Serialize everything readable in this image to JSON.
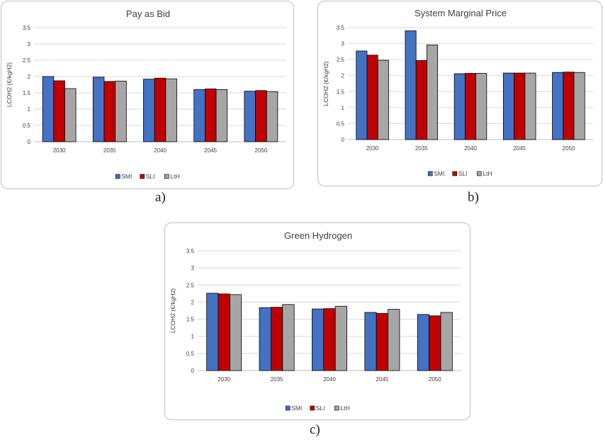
{
  "chart_data": [
    {
      "type": "bar",
      "id": "a",
      "title": "Pay as Bid",
      "caption": "a)",
      "ylabel": "LCOH2 (€/kgH2)",
      "xlabel": "",
      "ylim": [
        0,
        3.5
      ],
      "yticks": [
        "0",
        "0.5",
        "1",
        "1.5",
        "2",
        "2.5",
        "3",
        "3.5"
      ],
      "categories": [
        "2030",
        "2035",
        "2040",
        "2045",
        "2050"
      ],
      "grid": true,
      "legend_position": "bottom",
      "series": [
        {
          "name": "SMI",
          "color": "#4472c4",
          "values": [
            2.0,
            1.98,
            1.92,
            1.6,
            1.55
          ]
        },
        {
          "name": "SLI",
          "color": "#c00000",
          "values": [
            1.87,
            1.85,
            1.95,
            1.62,
            1.57
          ]
        },
        {
          "name": "LtH",
          "color": "#a6a6a6",
          "values": [
            1.63,
            1.86,
            1.93,
            1.6,
            1.54
          ]
        }
      ]
    },
    {
      "type": "bar",
      "id": "b",
      "title": "System Marginal Price",
      "caption": "b)",
      "ylabel": "LCOH2 (€/kgH2)",
      "xlabel": "",
      "ylim": [
        0,
        3.5
      ],
      "yticks": [
        "0",
        "0.5",
        "1",
        "1.5",
        "2",
        "2.5",
        "3",
        "3.5"
      ],
      "categories": [
        "2030",
        "2035",
        "2040",
        "2045",
        "2050"
      ],
      "grid": true,
      "legend_position": "bottom",
      "series": [
        {
          "name": "SMI",
          "color": "#4472c4",
          "values": [
            2.77,
            3.4,
            2.06,
            2.08,
            2.1
          ]
        },
        {
          "name": "SLI",
          "color": "#c00000",
          "values": [
            2.64,
            2.47,
            2.07,
            2.08,
            2.11
          ]
        },
        {
          "name": "LtH",
          "color": "#a6a6a6",
          "values": [
            2.48,
            2.96,
            2.07,
            2.08,
            2.1
          ]
        }
      ]
    },
    {
      "type": "bar",
      "id": "c",
      "title": "Green Hydrogen",
      "caption": "c)",
      "ylabel": "LCOH2 (€/kgH2)",
      "xlabel": "",
      "ylim": [
        0,
        3.5
      ],
      "yticks": [
        "0",
        "0.5",
        "1",
        "1.5",
        "2",
        "2.5",
        "3",
        "3.5"
      ],
      "categories": [
        "2030",
        "2035",
        "2040",
        "2045",
        "2050"
      ],
      "grid": true,
      "legend_position": "bottom",
      "series": [
        {
          "name": "SMI",
          "color": "#4472c4",
          "values": [
            2.26,
            1.84,
            1.8,
            1.7,
            1.64
          ]
        },
        {
          "name": "SLI",
          "color": "#c00000",
          "values": [
            2.24,
            1.85,
            1.81,
            1.67,
            1.6
          ]
        },
        {
          "name": "LtH",
          "color": "#a6a6a6",
          "values": [
            2.22,
            1.93,
            1.88,
            1.79,
            1.7
          ]
        }
      ]
    }
  ]
}
